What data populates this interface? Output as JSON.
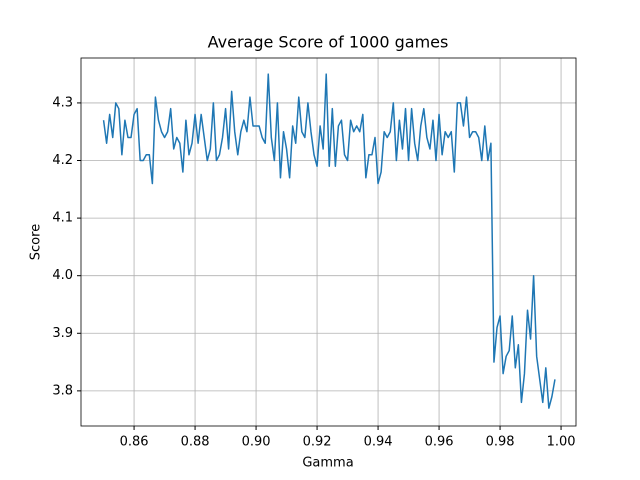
{
  "chart_data": {
    "type": "line",
    "title": "Average Score of 1000 games",
    "x_label": "Gamma",
    "y_label": "Score",
    "x": [
      0.85,
      0.851,
      0.852,
      0.853,
      0.854,
      0.855,
      0.856,
      0.857,
      0.858,
      0.859,
      0.86,
      0.861,
      0.862,
      0.863,
      0.864,
      0.865,
      0.866,
      0.867,
      0.868,
      0.869,
      0.87,
      0.871,
      0.872,
      0.873,
      0.874,
      0.875,
      0.876,
      0.877,
      0.878,
      0.879,
      0.88,
      0.881,
      0.882,
      0.883,
      0.884,
      0.885,
      0.886,
      0.887,
      0.888,
      0.889,
      0.89,
      0.891,
      0.892,
      0.893,
      0.894,
      0.895,
      0.896,
      0.897,
      0.898,
      0.899,
      0.9,
      0.901,
      0.902,
      0.903,
      0.904,
      0.905,
      0.906,
      0.907,
      0.908,
      0.909,
      0.91,
      0.911,
      0.912,
      0.913,
      0.914,
      0.915,
      0.916,
      0.917,
      0.918,
      0.919,
      0.92,
      0.921,
      0.922,
      0.923,
      0.924,
      0.925,
      0.926,
      0.927,
      0.928,
      0.929,
      0.93,
      0.931,
      0.932,
      0.933,
      0.934,
      0.935,
      0.936,
      0.937,
      0.938,
      0.939,
      0.94,
      0.941,
      0.942,
      0.943,
      0.944,
      0.945,
      0.946,
      0.947,
      0.948,
      0.949,
      0.95,
      0.951,
      0.952,
      0.953,
      0.954,
      0.955,
      0.956,
      0.957,
      0.958,
      0.959,
      0.96,
      0.961,
      0.962,
      0.963,
      0.964,
      0.965,
      0.966,
      0.967,
      0.968,
      0.969,
      0.97,
      0.971,
      0.972,
      0.973,
      0.974,
      0.975,
      0.976,
      0.977,
      0.978,
      0.979,
      0.98,
      0.981,
      0.982,
      0.983,
      0.984,
      0.985,
      0.986,
      0.987,
      0.988,
      0.989,
      0.99,
      0.991,
      0.992,
      0.993,
      0.994,
      0.995,
      0.996,
      0.997,
      0.998
    ],
    "series": [
      {
        "name": "Score",
        "color": "#1f77b4",
        "values": [
          4.27,
          4.23,
          4.28,
          4.24,
          4.3,
          4.29,
          4.21,
          4.27,
          4.24,
          4.24,
          4.28,
          4.29,
          4.2,
          4.2,
          4.21,
          4.21,
          4.16,
          4.31,
          4.27,
          4.25,
          4.24,
          4.25,
          4.29,
          4.22,
          4.24,
          4.23,
          4.18,
          4.27,
          4.21,
          4.23,
          4.28,
          4.23,
          4.28,
          4.24,
          4.2,
          4.22,
          4.3,
          4.2,
          4.21,
          4.24,
          4.29,
          4.22,
          4.32,
          4.25,
          4.21,
          4.25,
          4.27,
          4.25,
          4.31,
          4.26,
          4.26,
          4.26,
          4.24,
          4.23,
          4.35,
          4.24,
          4.2,
          4.3,
          4.17,
          4.25,
          4.22,
          4.17,
          4.26,
          4.23,
          4.31,
          4.25,
          4.24,
          4.3,
          4.25,
          4.21,
          4.19,
          4.26,
          4.22,
          4.35,
          4.19,
          4.29,
          4.19,
          4.26,
          4.27,
          4.21,
          4.2,
          4.27,
          4.25,
          4.26,
          4.25,
          4.28,
          4.17,
          4.21,
          4.21,
          4.24,
          4.16,
          4.18,
          4.25,
          4.24,
          4.25,
          4.3,
          4.2,
          4.27,
          4.22,
          4.29,
          4.2,
          4.29,
          4.23,
          4.2,
          4.26,
          4.29,
          4.24,
          4.22,
          4.27,
          4.2,
          4.28,
          4.21,
          4.25,
          4.24,
          4.25,
          4.18,
          4.3,
          4.3,
          4.26,
          4.31,
          4.24,
          4.25,
          4.25,
          4.24,
          4.2,
          4.26,
          4.2,
          4.23,
          3.85,
          3.91,
          3.93,
          3.83,
          3.86,
          3.87,
          3.93,
          3.84,
          3.88,
          3.78,
          3.83,
          3.94,
          3.89,
          4.0,
          3.86,
          3.82,
          3.78,
          3.84,
          3.77,
          3.79,
          3.82
        ]
      }
    ],
    "xlim": [
      0.8426,
      1.0049
    ],
    "ylim": [
      3.739,
      4.378
    ],
    "xticks": [
      {
        "value": 0.86,
        "label": "0.86"
      },
      {
        "value": 0.88,
        "label": "0.88"
      },
      {
        "value": 0.9,
        "label": "0.90"
      },
      {
        "value": 0.92,
        "label": "0.92"
      },
      {
        "value": 0.94,
        "label": "0.94"
      },
      {
        "value": 0.96,
        "label": "0.96"
      },
      {
        "value": 0.98,
        "label": "0.98"
      },
      {
        "value": 1.0,
        "label": "1.00"
      }
    ],
    "yticks": [
      {
        "value": 3.8,
        "label": "3.8"
      },
      {
        "value": 3.9,
        "label": "3.9"
      },
      {
        "value": 4.0,
        "label": "4.0"
      },
      {
        "value": 4.1,
        "label": "4.1"
      },
      {
        "value": 4.2,
        "label": "4.2"
      },
      {
        "value": 4.3,
        "label": "4.3"
      }
    ],
    "grid": true
  }
}
